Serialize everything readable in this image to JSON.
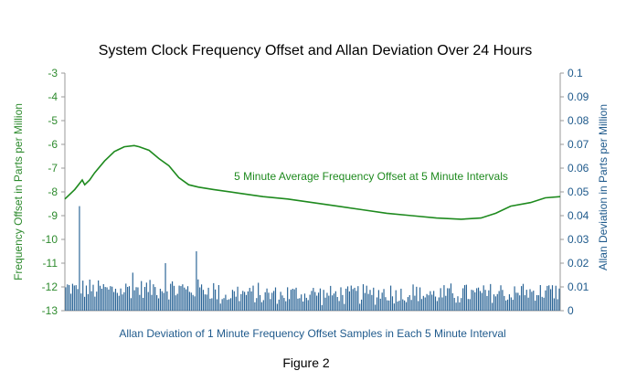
{
  "chart_data": {
    "type": "line",
    "title": "System Clock Frequency Offset and Allan Deviation Over 24 Hours",
    "left_axis": {
      "label": "Frequency Offset  in Parts per Million",
      "ylim": [
        -13,
        -3
      ],
      "ticks": [
        "-3",
        "-4",
        "-5",
        "-6",
        "-7",
        "-8",
        "-9",
        "-10",
        "-11",
        "-12",
        "-13"
      ],
      "color": "#2e8b2e"
    },
    "right_axis": {
      "label": "Allan Deviation in Parts per Million",
      "ylim": [
        0,
        0.1
      ],
      "ticks": [
        "0.1",
        "0.09",
        "0.08",
        "0.07",
        "0.06",
        "0.05",
        "0.04",
        "0.03",
        "0.02",
        "0.01",
        "0"
      ],
      "color": "#1f5a8c"
    },
    "series": [
      {
        "name": "5 Minute Average Frequency Offset at 5 Minute Intervals",
        "type": "line",
        "axis": "left",
        "color": "#1e8a1e",
        "x": [
          0,
          0.02,
          0.035,
          0.04,
          0.05,
          0.06,
          0.08,
          0.1,
          0.12,
          0.14,
          0.15,
          0.17,
          0.19,
          0.21,
          0.23,
          0.25,
          0.27,
          0.3,
          0.35,
          0.4,
          0.45,
          0.5,
          0.55,
          0.6,
          0.65,
          0.7,
          0.75,
          0.8,
          0.84,
          0.87,
          0.9,
          0.94,
          0.97,
          1.0
        ],
        "values": [
          -8.3,
          -7.9,
          -7.5,
          -7.7,
          -7.5,
          -7.2,
          -6.7,
          -6.3,
          -6.1,
          -6.05,
          -6.1,
          -6.25,
          -6.6,
          -6.9,
          -7.4,
          -7.7,
          -7.8,
          -7.9,
          -8.05,
          -8.2,
          -8.3,
          -8.45,
          -8.6,
          -8.75,
          -8.9,
          -9.0,
          -9.1,
          -9.15,
          -9.1,
          -8.9,
          -8.6,
          -8.45,
          -8.25,
          -8.2
        ]
      },
      {
        "name": "Allan Deviation of 1 Minute Frequency Offset Samples in Each 5 Minute Interval",
        "type": "bar",
        "axis": "right",
        "color": "#2a6496",
        "count": 288,
        "typical_range": [
          0.004,
          0.012
        ],
        "spikes": [
          {
            "index": 8,
            "value": 0.044
          },
          {
            "index": 39,
            "value": 0.016
          },
          {
            "index": 58,
            "value": 0.02
          },
          {
            "index": 76,
            "value": 0.025
          }
        ]
      }
    ]
  },
  "footer": {
    "caption": "Figure 2"
  }
}
